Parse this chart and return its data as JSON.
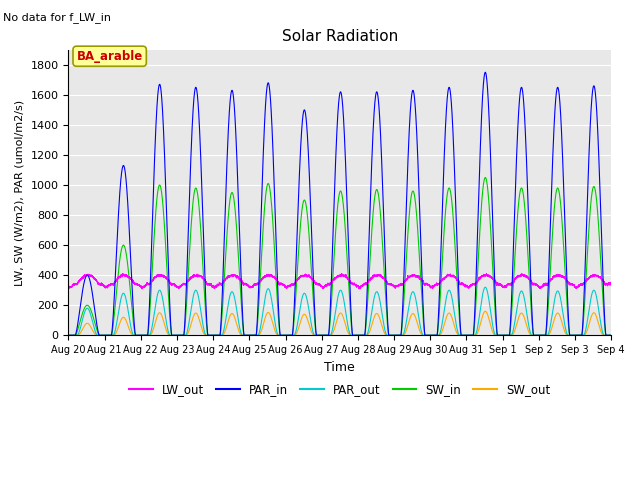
{
  "title": "Solar Radiation",
  "subtitle": "No data for f_LW_in",
  "xlabel": "Time",
  "ylabel": "LW, SW (W/m2), PAR (umol/m2/s)",
  "ylim": [
    0,
    1900
  ],
  "yticks": [
    0,
    200,
    400,
    600,
    800,
    1000,
    1200,
    1400,
    1600,
    1800
  ],
  "num_days": 15,
  "PAR_in_color": "#0000ff",
  "PAR_out_color": "#00cccc",
  "SW_in_color": "#00cc00",
  "SW_out_color": "#ffaa00",
  "LW_out_color": "#ff00ff",
  "legend_box_color": "#ffff99",
  "legend_box_edge": "#999900",
  "annotation_text": "BA_arable",
  "annotation_color": "#cc0000",
  "background_color": "#e8e8e8",
  "figsize": [
    6.4,
    4.8
  ],
  "dpi": 100,
  "PAR_in_peaks": [
    400,
    1130,
    1670,
    1650,
    1630,
    1680,
    1500,
    1620,
    1620,
    1630,
    1650,
    1750,
    1650,
    1650,
    1660
  ],
  "SW_in_peaks": [
    200,
    600,
    1000,
    980,
    950,
    1010,
    900,
    960,
    970,
    960,
    980,
    1050,
    980,
    980,
    990
  ],
  "PAR_out_peaks": [
    180,
    280,
    300,
    300,
    290,
    310,
    280,
    300,
    290,
    290,
    300,
    320,
    295,
    295,
    300
  ],
  "SW_out_peaks": [
    80,
    120,
    150,
    148,
    145,
    152,
    140,
    148,
    145,
    145,
    148,
    160,
    148,
    148,
    150
  ]
}
